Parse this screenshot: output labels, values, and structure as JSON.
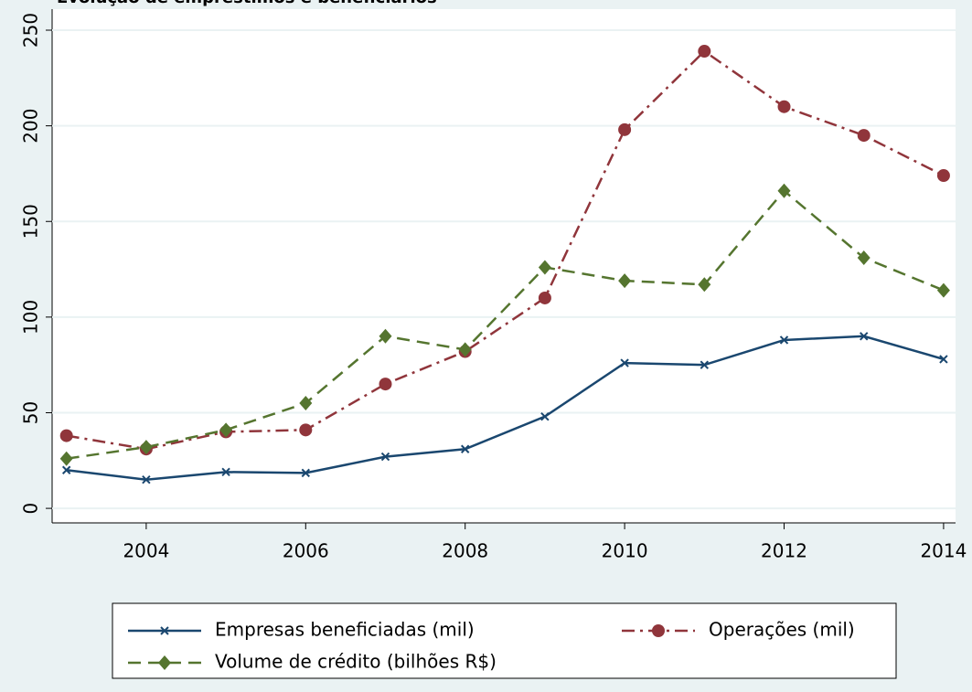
{
  "chart_data": {
    "type": "line",
    "title": "Evolução de empréstimos e beneficiários",
    "x": [
      2003,
      2004,
      2005,
      2006,
      2007,
      2008,
      2009,
      2010,
      2011,
      2012,
      2013,
      2014
    ],
    "series": [
      {
        "name": "Empresas beneficiadas (mil)",
        "color": "#1a476f",
        "marker": "x",
        "dash": "solid",
        "values": [
          20,
          15,
          19,
          18.5,
          27,
          31,
          48,
          76,
          75,
          88,
          90,
          78
        ]
      },
      {
        "name": "Operações (mil)",
        "color": "#90353b",
        "marker": "circle",
        "dash": "dashdot",
        "values": [
          38,
          31,
          40,
          41,
          65,
          82,
          110,
          198,
          239,
          210,
          195,
          174
        ]
      },
      {
        "name": "Volume de crédito (bilhões R$)",
        "color": "#55752f",
        "marker": "diamond",
        "dash": "dash",
        "values": [
          26,
          32,
          41,
          55,
          90,
          83,
          126,
          119,
          117,
          166,
          131,
          114
        ]
      }
    ],
    "xlim": [
      2002.82,
      2014.15
    ],
    "xticks": [
      2004,
      2006,
      2008,
      2010,
      2012,
      2014
    ],
    "ylim": [
      -7.6,
      261
    ],
    "yticks": [
      0,
      50,
      100,
      150,
      200,
      250
    ],
    "grid": true
  }
}
